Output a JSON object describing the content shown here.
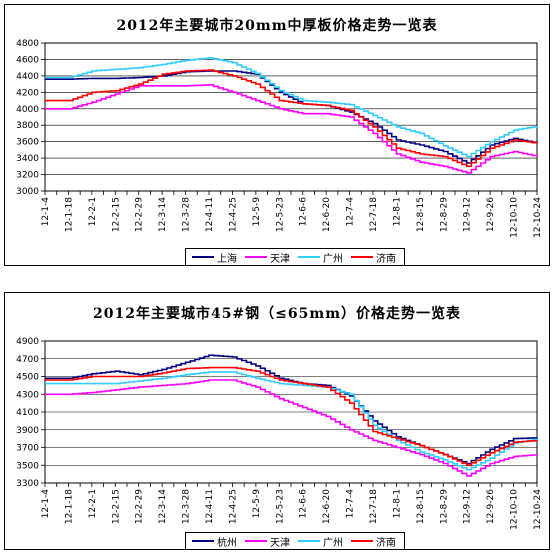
{
  "chart_data": [
    {
      "type": "line",
      "title": "2012年主要城市20mm中厚板价格走势一览表",
      "ylim": [
        3000,
        4800
      ],
      "yticks": [
        3000,
        3200,
        3400,
        3600,
        3800,
        4000,
        4200,
        4400,
        4600,
        4800
      ],
      "categories": [
        "12-1-4",
        "12-1-18",
        "12-2-1",
        "12-2-15",
        "12-2-29",
        "12-3-14",
        "12-3-28",
        "12-4-11",
        "12-4-25",
        "12-5-9",
        "12-5-23",
        "12-6-6",
        "12-6-20",
        "12-7-4",
        "12-7-18",
        "12-8-1",
        "12-8-15",
        "12-8-29",
        "12-9-12",
        "12-9-26",
        "12-10-10",
        "12-10-24"
      ],
      "grid": true,
      "legend_position": "bottom",
      "series": [
        {
          "name": "上海",
          "color": "#000080",
          "values": [
            4360,
            4360,
            4370,
            4370,
            4380,
            4400,
            4450,
            4460,
            4460,
            4420,
            4200,
            4060,
            4040,
            3960,
            3820,
            3620,
            3560,
            3480,
            3340,
            3560,
            3640,
            3580
          ]
        },
        {
          "name": "天津",
          "color": "#ff00ff",
          "values": [
            4000,
            4000,
            4080,
            4180,
            4280,
            4280,
            4280,
            4290,
            4200,
            4100,
            4000,
            3940,
            3940,
            3900,
            3700,
            3450,
            3350,
            3300,
            3220,
            3420,
            3480,
            3420
          ]
        },
        {
          "name": "广州",
          "color": "#33ccff",
          "values": [
            4380,
            4380,
            4460,
            4480,
            4500,
            4540,
            4590,
            4620,
            4560,
            4430,
            4220,
            4100,
            4080,
            4050,
            3920,
            3780,
            3700,
            3550,
            3420,
            3600,
            3740,
            3790
          ]
        },
        {
          "name": "济南",
          "color": "#ff0000",
          "values": [
            4100,
            4100,
            4200,
            4220,
            4300,
            4420,
            4460,
            4470,
            4400,
            4300,
            4100,
            4060,
            4040,
            3980,
            3780,
            3520,
            3450,
            3420,
            3300,
            3520,
            3620,
            3580
          ]
        }
      ]
    },
    {
      "type": "line",
      "title": "2012年主要城市45#钢（≤65mm）价格走势一览表",
      "ylim": [
        3300,
        4900
      ],
      "yticks": [
        3300,
        3500,
        3700,
        3900,
        4100,
        4300,
        4500,
        4700,
        4900
      ],
      "categories": [
        "12-1-4",
        "12-1-18",
        "12-2-1",
        "12-2-15",
        "12-2-29",
        "12-3-14",
        "12-3-28",
        "12-4-11",
        "12-4-25",
        "12-5-9",
        "12-5-23",
        "12-6-6",
        "12-6-20",
        "12-7-4",
        "12-7-18",
        "12-8-1",
        "12-8-15",
        "12-8-29",
        "12-9-12",
        "12-9-26",
        "12-10-10",
        "12-10-24"
      ],
      "grid": true,
      "legend_position": "bottom",
      "series": [
        {
          "name": "杭州",
          "color": "#000080",
          "values": [
            4480,
            4480,
            4530,
            4560,
            4520,
            4580,
            4660,
            4740,
            4720,
            4620,
            4480,
            4420,
            4400,
            4280,
            4000,
            3820,
            3720,
            3620,
            3520,
            3680,
            3800,
            3810
          ]
        },
        {
          "name": "天津",
          "color": "#ff00ff",
          "values": [
            4300,
            4300,
            4320,
            4350,
            4380,
            4400,
            4420,
            4460,
            4460,
            4380,
            4250,
            4150,
            4050,
            3900,
            3780,
            3700,
            3620,
            3520,
            3380,
            3520,
            3600,
            3620
          ]
        },
        {
          "name": "广州",
          "color": "#33ccff",
          "values": [
            4420,
            4420,
            4420,
            4420,
            4450,
            4480,
            4520,
            4550,
            4550,
            4480,
            4420,
            4400,
            4380,
            4300,
            3950,
            3780,
            3650,
            3560,
            3450,
            3580,
            3750,
            3800
          ]
        },
        {
          "name": "济南",
          "color": "#ff0000",
          "values": [
            4460,
            4460,
            4500,
            4500,
            4500,
            4540,
            4590,
            4600,
            4600,
            4560,
            4460,
            4420,
            4380,
            4200,
            3880,
            3800,
            3720,
            3620,
            3500,
            3640,
            3760,
            3780
          ]
        }
      ]
    }
  ]
}
